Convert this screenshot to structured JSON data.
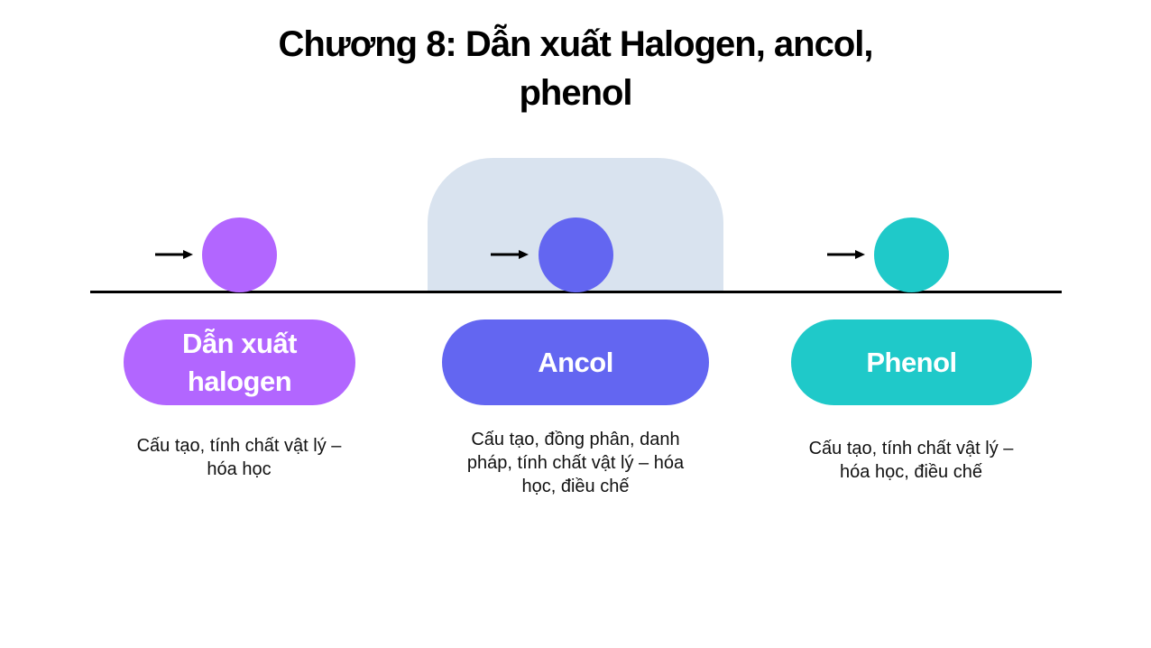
{
  "title": {
    "line1": "Chương 8: Dẫn xuất Halogen, ancol,",
    "line2": "phenol"
  },
  "colors": {
    "halogen": "#b266ff",
    "ancol": "#6366f1",
    "phenol": "#1fc9c9",
    "highlight_panel": "#d9e3ef",
    "timeline": "#000000"
  },
  "stages": [
    {
      "label": "Dẫn xuất halogen",
      "description": "Cấu tạo, tính chất vật lý – hóa học",
      "icon": "arrow-right-icon"
    },
    {
      "label": "Ancol",
      "description": "Cấu tạo, đồng phân, danh pháp, tính chất vật lý – hóa học, điều chế",
      "icon": "arrow-right-icon",
      "highlighted": true
    },
    {
      "label": "Phenol",
      "description": "Cấu tạo, tính chất vật lý – hóa học, điều chế",
      "icon": "arrow-right-icon"
    }
  ]
}
